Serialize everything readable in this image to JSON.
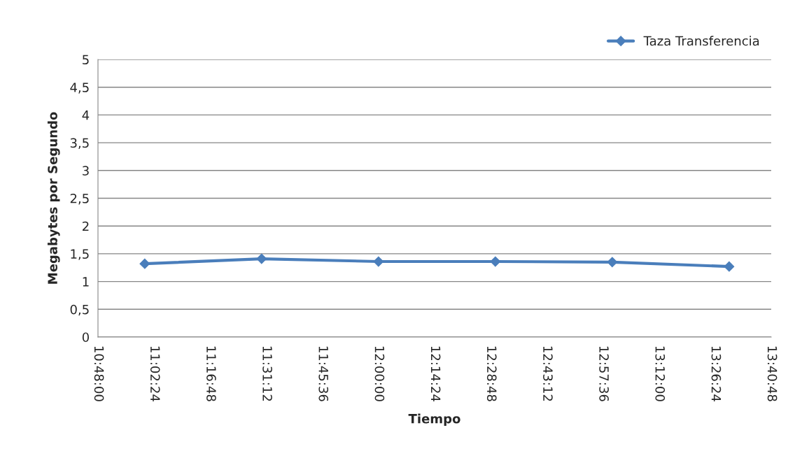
{
  "chart_data": {
    "type": "line",
    "xlabel": "Tiempo",
    "ylabel": "Megabytes por Segundo",
    "x": [
      11.0,
      11.5,
      12.0,
      12.5,
      13.0,
      13.5
    ],
    "series": [
      {
        "name": "Taza Transferencia",
        "color": "#4a7ebb",
        "values": [
          1.32,
          1.41,
          1.36,
          1.36,
          1.35,
          1.27
        ]
      }
    ],
    "xlim": [
      10.8,
      13.68
    ],
    "xticks": [
      {
        "value": 10.8,
        "label": "10:48:00"
      },
      {
        "value": 11.04,
        "label": "11:02:24"
      },
      {
        "value": 11.28,
        "label": "11:16:48"
      },
      {
        "value": 11.52,
        "label": "11:31:12"
      },
      {
        "value": 11.76,
        "label": "11:45:36"
      },
      {
        "value": 12.0,
        "label": "12:00:00"
      },
      {
        "value": 12.24,
        "label": "12:14:24"
      },
      {
        "value": 12.48,
        "label": "12:28:48"
      },
      {
        "value": 12.72,
        "label": "12:43:12"
      },
      {
        "value": 12.96,
        "label": "12:57:36"
      },
      {
        "value": 13.2,
        "label": "13:12:00"
      },
      {
        "value": 13.44,
        "label": "13:26:24"
      },
      {
        "value": 13.68,
        "label": "13:40:48"
      }
    ],
    "ylim": [
      0,
      5
    ],
    "yticks": [
      0,
      {
        "value": 0.5,
        "label": "0,5"
      },
      1,
      {
        "value": 1.5,
        "label": "1,5"
      },
      2,
      {
        "value": 2.5,
        "label": "2,5"
      },
      3,
      {
        "value": 3.5,
        "label": "3,5"
      },
      4,
      {
        "value": 4.5,
        "label": "4,5"
      },
      5
    ],
    "grid": "y",
    "legend": "top right",
    "marker": "diamond",
    "line_style": "solid"
  }
}
